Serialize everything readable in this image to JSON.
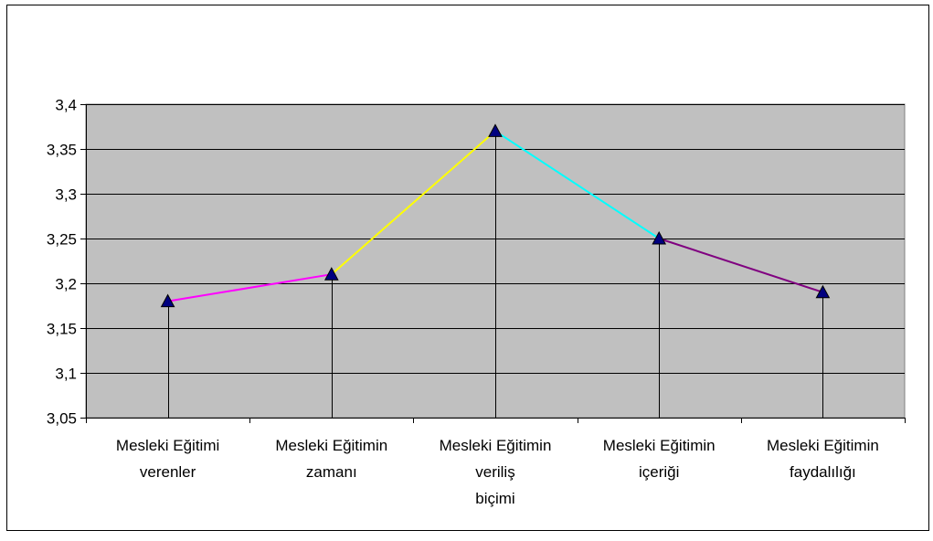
{
  "chart_data": {
    "type": "line",
    "title": "",
    "xlabel": "",
    "ylabel": "",
    "ylim": [
      3.05,
      3.4
    ],
    "yticks": [
      "3,05",
      "3,1",
      "3,15",
      "3,2",
      "3,25",
      "3,3",
      "3,35",
      "3,4"
    ],
    "ytick_values": [
      3.05,
      3.1,
      3.15,
      3.2,
      3.25,
      3.3,
      3.35,
      3.4
    ],
    "categories": [
      [
        "Mesleki Eğitimi",
        "verenler"
      ],
      [
        "Mesleki Eğitimin",
        "zamanı"
      ],
      [
        "Mesleki Eğitimin",
        "veriliş",
        "biçimi"
      ],
      [
        "Mesleki Eğitimin",
        "içeriği"
      ],
      [
        "Mesleki Eğitimin",
        "faydalılığı"
      ]
    ],
    "values": [
      3.18,
      3.21,
      3.37,
      3.25,
      3.19
    ],
    "grid": true,
    "legend": "none",
    "colors": {
      "plot_background": "#c0c0c0",
      "gridline": "#000000",
      "marker": "#000080",
      "drop_line": "#000000",
      "segments": [
        "#ff00ff",
        "#ffff00",
        "#00ffff",
        "#800080"
      ]
    }
  }
}
